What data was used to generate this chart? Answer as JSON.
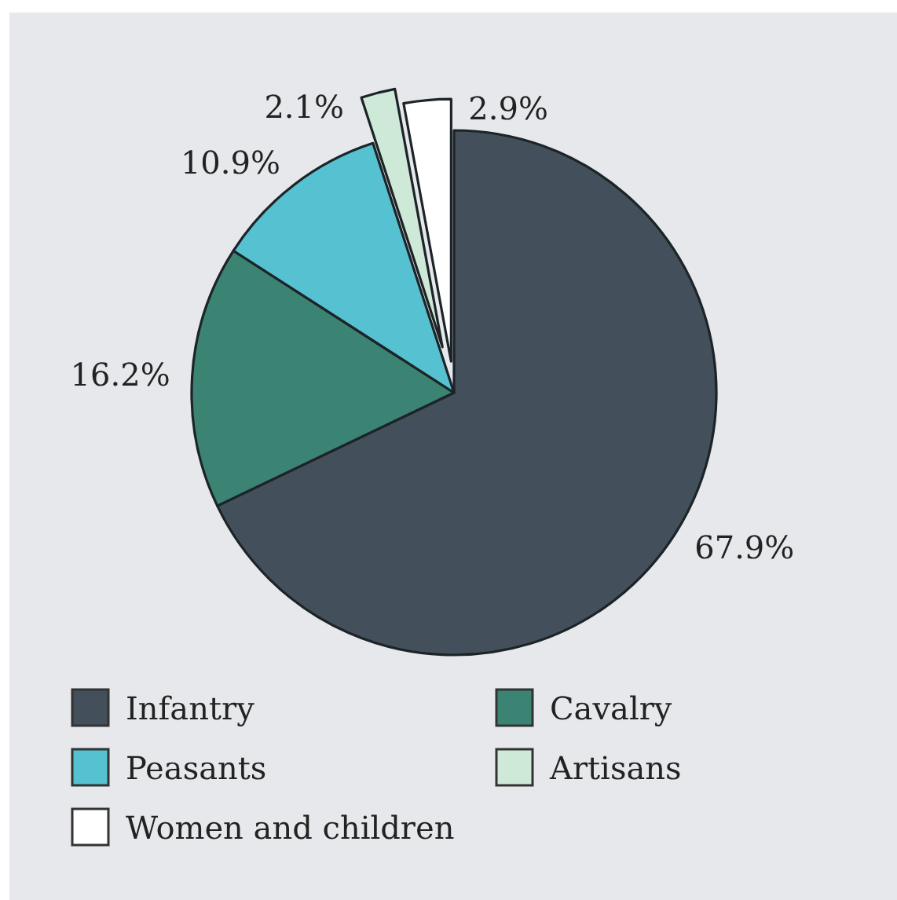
{
  "chart_data": {
    "type": "pie",
    "categories": [
      "Infantry",
      "Cavalry",
      "Peasants",
      "Artisans",
      "Women and children"
    ],
    "values": [
      67.9,
      16.2,
      10.9,
      2.1,
      2.9
    ],
    "colors": [
      "#434f5a",
      "#3b8474",
      "#55c1d1",
      "#cfe9d9",
      "#ffffff"
    ],
    "value_labels": [
      "67.9%",
      "16.2%",
      "10.9%",
      "2.1%",
      "2.9%"
    ],
    "legend": "bottom"
  }
}
